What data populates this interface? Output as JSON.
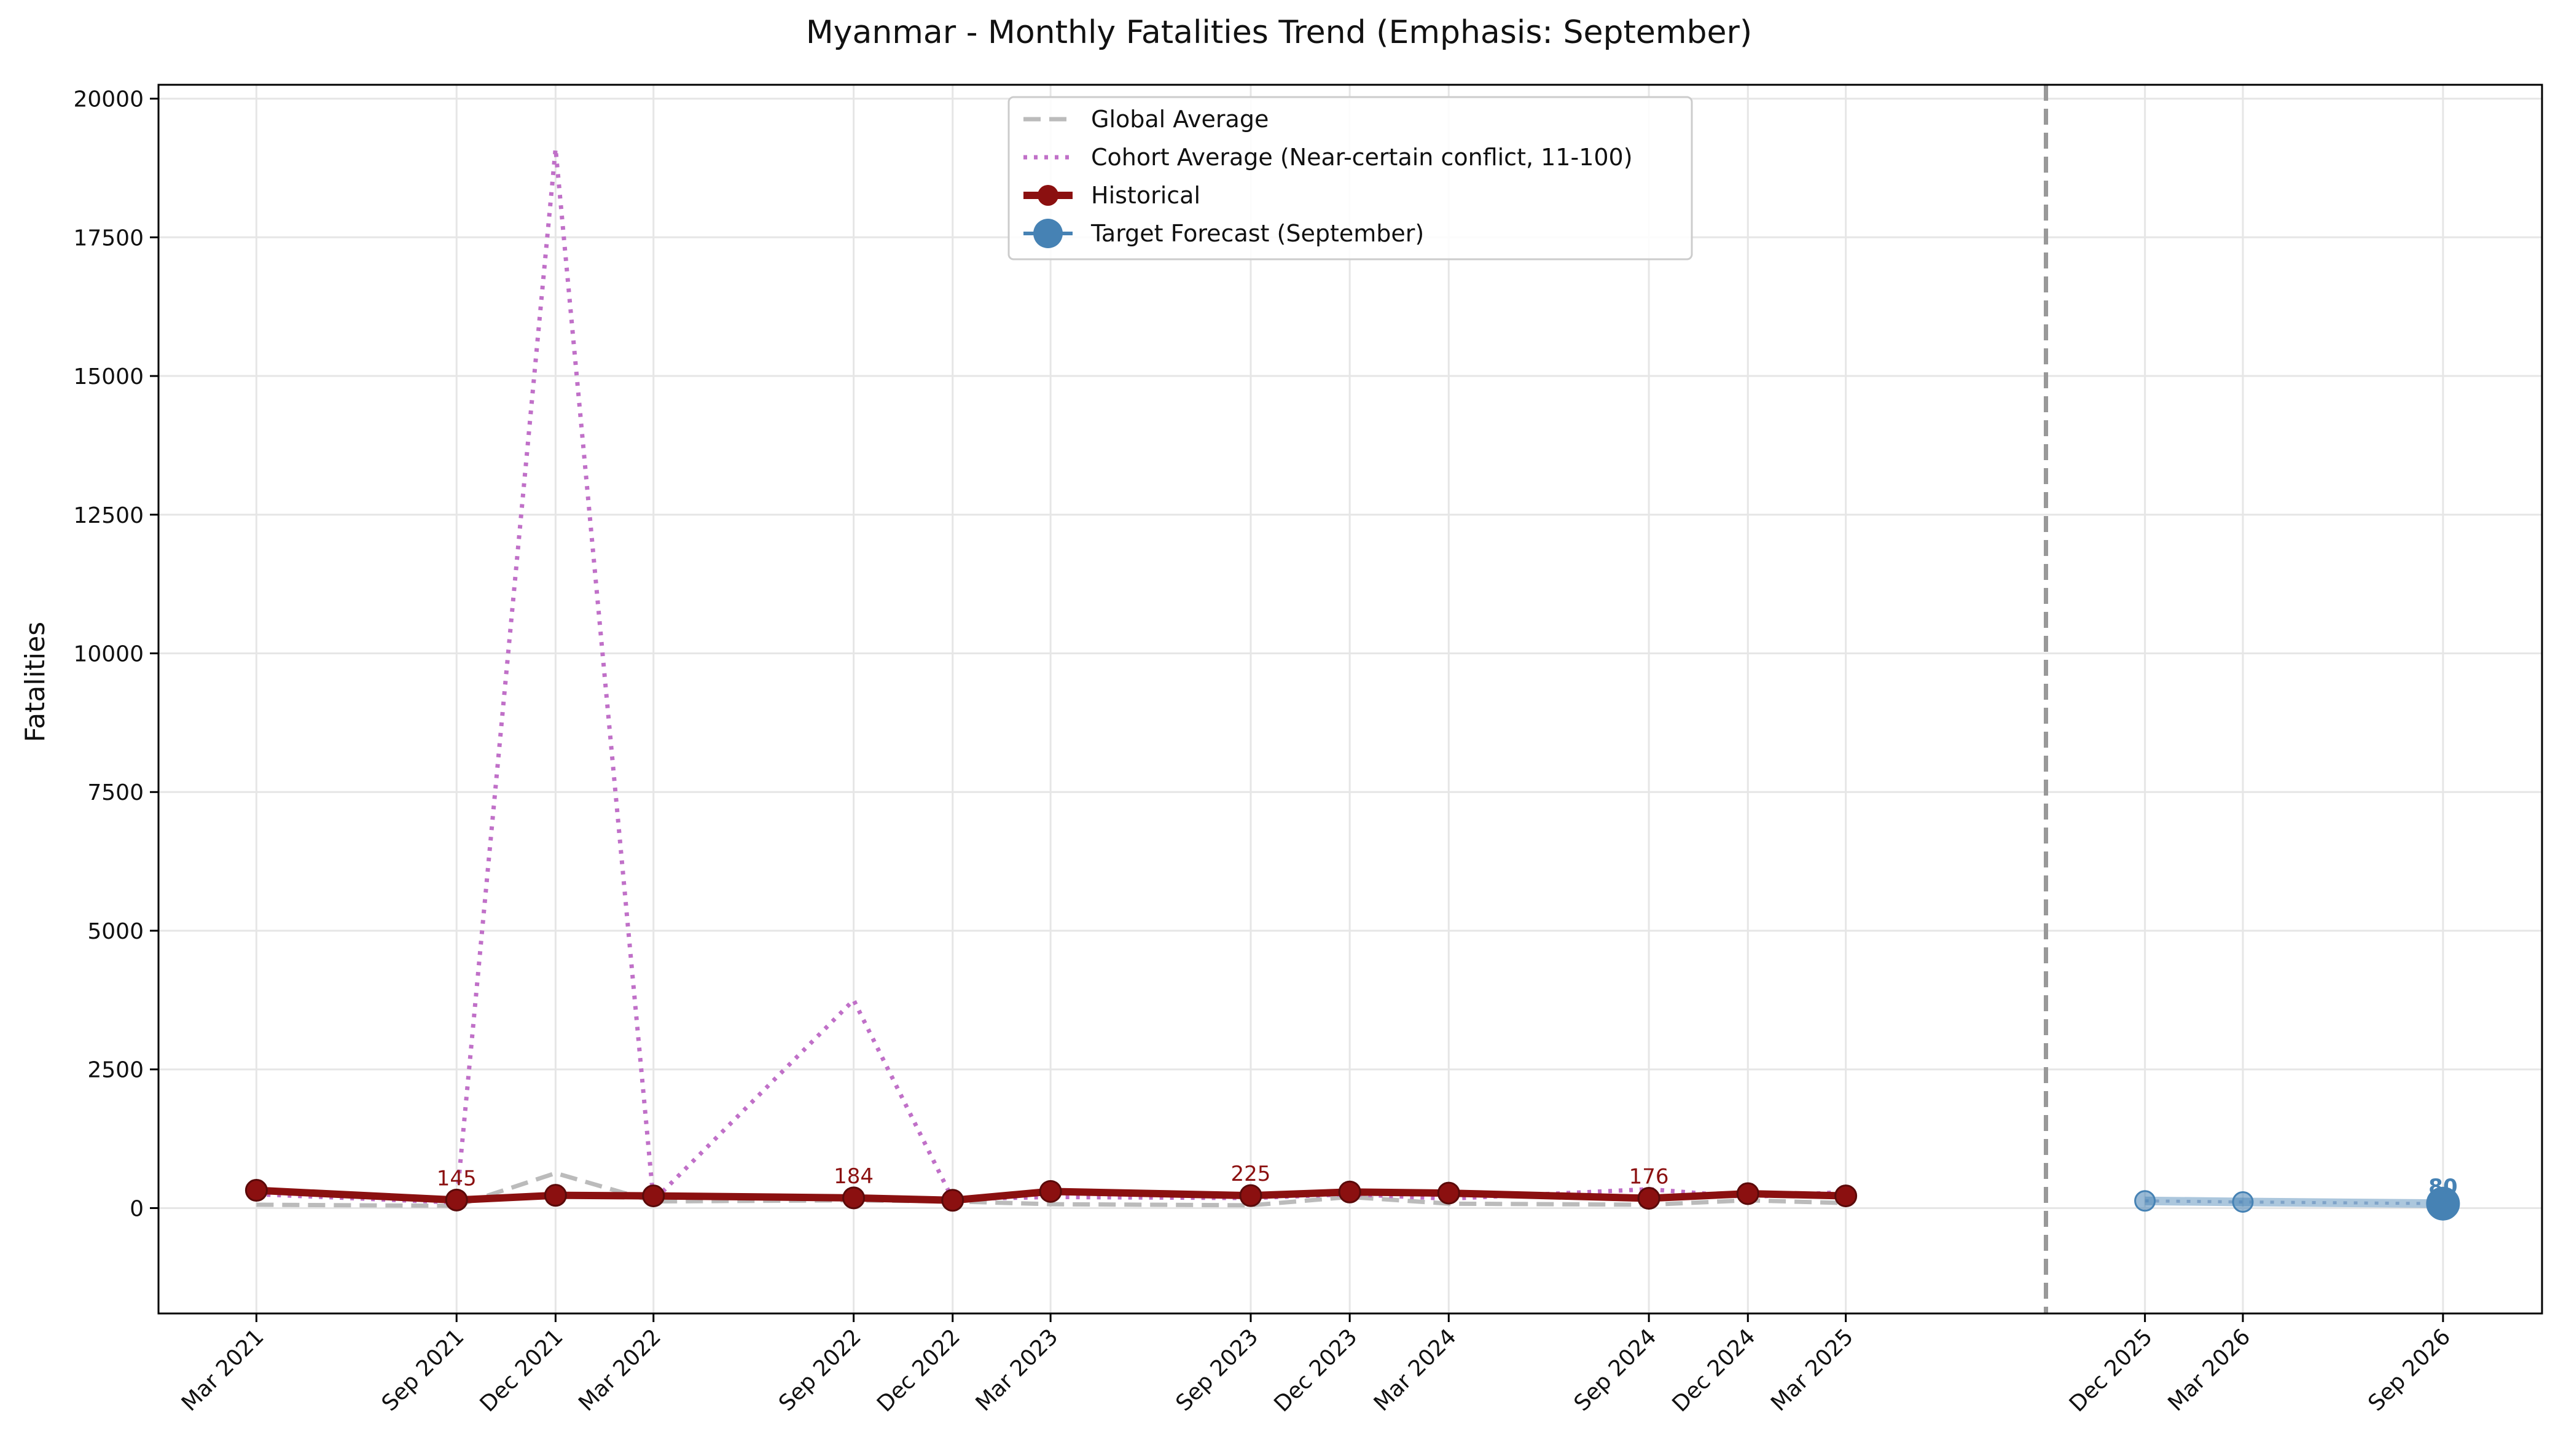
{
  "chart_data": {
    "type": "line",
    "title": "Myanmar - Monthly Fatalities Trend (Emphasis: September)",
    "xlabel": "",
    "ylabel": "Fatalities",
    "ylim": [
      -1900,
      20250
    ],
    "y_ticks": [
      0,
      2500,
      5000,
      7500,
      10000,
      12500,
      15000,
      17500,
      20000
    ],
    "x_range": [
      "2020-12-01",
      "2026-12-01"
    ],
    "x_ticks": [
      {
        "date": "2021-03-01",
        "label": "Mar 2021"
      },
      {
        "date": "2021-09-01",
        "label": "Sep 2021"
      },
      {
        "date": "2021-12-01",
        "label": "Dec 2021"
      },
      {
        "date": "2022-03-01",
        "label": "Mar 2022"
      },
      {
        "date": "2022-09-01",
        "label": "Sep 2022"
      },
      {
        "date": "2022-12-01",
        "label": "Dec 2022"
      },
      {
        "date": "2023-03-01",
        "label": "Mar 2023"
      },
      {
        "date": "2023-09-01",
        "label": "Sep 2023"
      },
      {
        "date": "2023-12-01",
        "label": "Dec 2023"
      },
      {
        "date": "2024-03-01",
        "label": "Mar 2024"
      },
      {
        "date": "2024-09-01",
        "label": "Sep 2024"
      },
      {
        "date": "2024-12-01",
        "label": "Dec 2024"
      },
      {
        "date": "2025-03-01",
        "label": "Mar 2025"
      },
      {
        "date": "2025-12-01",
        "label": "Dec 2025"
      },
      {
        "date": "2026-03-01",
        "label": "Mar 2026"
      },
      {
        "date": "2026-09-01",
        "label": "Sep 2026"
      }
    ],
    "grid": true,
    "legend_position": "top-center",
    "forecast_divider_date": "2025-09-01",
    "series": [
      {
        "name": "Global Average",
        "style": "dashed",
        "color": "#bbbbbb",
        "x": [
          "2021-03-01",
          "2021-09-01",
          "2021-12-01",
          "2022-03-01",
          "2022-09-01",
          "2022-12-01",
          "2023-03-01",
          "2023-09-01",
          "2023-12-01",
          "2024-03-01",
          "2024-09-01",
          "2024-12-01",
          "2025-03-01"
        ],
        "values": [
          60,
          40,
          630,
          120,
          140,
          120,
          70,
          50,
          200,
          80,
          60,
          140,
          90
        ]
      },
      {
        "name": "Cohort Average (Near-certain conflict, 11-100)",
        "style": "dotted",
        "color": "#c070c8",
        "x": [
          "2021-03-01",
          "2021-09-01",
          "2021-12-01",
          "2022-03-01",
          "2022-09-01",
          "2022-12-01",
          "2023-03-01",
          "2023-09-01",
          "2023-12-01",
          "2024-03-01",
          "2024-09-01",
          "2024-12-01",
          "2025-03-01"
        ],
        "values": [
          250,
          100,
          19100,
          130,
          3750,
          160,
          200,
          180,
          250,
          170,
          340,
          200,
          290
        ]
      },
      {
        "name": "Historical",
        "style": "solid-markers",
        "color": "#8b1010",
        "x": [
          "2021-03-01",
          "2021-09-01",
          "2021-12-01",
          "2022-03-01",
          "2022-09-01",
          "2022-12-01",
          "2023-03-01",
          "2023-09-01",
          "2023-12-01",
          "2024-03-01",
          "2024-09-01",
          "2024-12-01",
          "2025-03-01"
        ],
        "values": [
          320,
          145,
          230,
          220,
          184,
          140,
          300,
          225,
          290,
          270,
          176,
          260,
          220
        ]
      },
      {
        "name": "Target Forecast (September)",
        "style": "forecast",
        "color": "#4682b4",
        "x": [
          "2025-12-01",
          "2026-03-01",
          "2026-09-01"
        ],
        "values": [
          130,
          110,
          80
        ]
      }
    ],
    "annotations": [
      {
        "date": "2021-09-01",
        "value": 145,
        "text": "145"
      },
      {
        "date": "2022-09-01",
        "value": 184,
        "text": "184"
      },
      {
        "date": "2023-09-01",
        "value": 225,
        "text": "225"
      },
      {
        "date": "2024-09-01",
        "value": 176,
        "text": "176"
      },
      {
        "date": "2026-09-01",
        "value": 80,
        "text": "80"
      }
    ]
  }
}
